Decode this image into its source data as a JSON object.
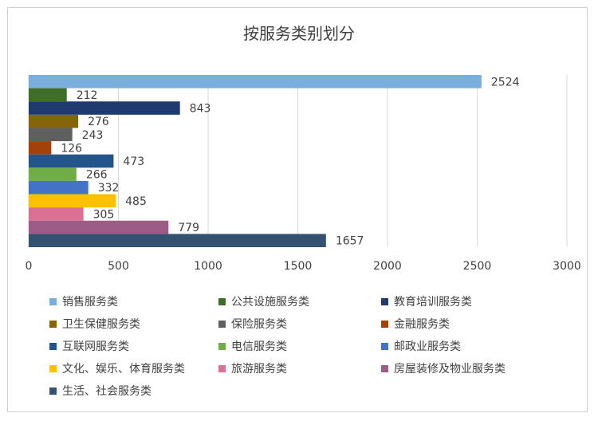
{
  "chart_data": {
    "type": "bar",
    "orientation": "horizontal",
    "title": "按服务类别划分",
    "xlim": [
      0,
      3000
    ],
    "xticks": [
      0,
      500,
      1000,
      1500,
      2000,
      2500,
      3000
    ],
    "grid": true,
    "legend_position": "bottom",
    "categories": [
      "销售服务类",
      "公共设施服务类",
      "教育培训服务类",
      "卫生保健服务类",
      "保险服务类",
      "金融服务类",
      "互联网服务类",
      "电信服务类",
      "邮政业服务类",
      "文化、娱乐、体育服务类",
      "旅游服务类",
      "房屋装修及物业服务类",
      "生活、社会服务类"
    ],
    "values": [
      2524,
      212,
      843,
      276,
      243,
      126,
      473,
      266,
      332,
      485,
      305,
      779,
      1657
    ],
    "colors": [
      "#7AAEDC",
      "#3F6E2B",
      "#1F3A6E",
      "#86640A",
      "#5F5F5F",
      "#A3410A",
      "#24558A",
      "#70AD47",
      "#4472C4",
      "#FFC000",
      "#DB7093",
      "#9C5C86",
      "#34526F"
    ]
  }
}
